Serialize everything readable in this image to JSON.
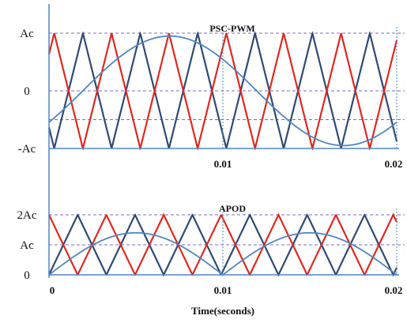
{
  "colors": {
    "carrier_a": "#2e4a73",
    "carrier_b": "#e0281f",
    "reference": "#4f86bf",
    "axis": "#4f86bf",
    "guide": "#7b68c8",
    "background": "#ffffff"
  },
  "chart_data": [
    {
      "type": "line",
      "title": "PSC-PWM",
      "x_range": [
        0,
        0.02
      ],
      "y_range": [
        -1,
        1
      ],
      "y_ticks": [
        {
          "value": 1,
          "label": "Ac"
        },
        {
          "value": 0,
          "label": "0"
        },
        {
          "value": -1,
          "label": "-Ac"
        }
      ],
      "x_ticks": [
        {
          "value": 0.01,
          "label": "0.01"
        },
        {
          "value": 0.02,
          "label": "0.02"
        }
      ],
      "guide_lines_y": [
        1,
        0,
        -0.5
      ],
      "carrier_period": 0.0033,
      "series": [
        {
          "role": "carrier",
          "color_key": "carrier_a",
          "phase_offset": 0.0003,
          "y_min": -1,
          "y_max": 1
        },
        {
          "role": "carrier",
          "color_key": "carrier_b",
          "phase_offset": 0.00195,
          "y_min": -1,
          "y_max": 1
        },
        {
          "role": "reference",
          "color_key": "reference",
          "amplitude": 0.95,
          "frequency_hz": 50,
          "phase_deg": -35
        }
      ]
    },
    {
      "type": "line",
      "title": "APOD",
      "x_range": [
        0,
        0.02
      ],
      "y_range": [
        0,
        2
      ],
      "y_ticks": [
        {
          "value": 2,
          "label": "2Ac"
        },
        {
          "value": 1,
          "label": "Ac"
        },
        {
          "value": 0,
          "label": "0"
        }
      ],
      "x_ticks": [
        {
          "value": 0,
          "label": "0"
        },
        {
          "value": 0.01,
          "label": "0.01"
        },
        {
          "value": 0.02,
          "label": "0.02"
        }
      ],
      "xlabel": "Time(seconds)",
      "guide_lines_y": [
        2,
        1
      ],
      "carrier_period": 0.0033,
      "series": [
        {
          "role": "carrier",
          "color_key": "carrier_a",
          "phase_offset": 0,
          "y_min": 0,
          "y_max": 2
        },
        {
          "role": "carrier",
          "color_key": "carrier_b",
          "phase_offset": 0.00165,
          "y_min": 0,
          "y_max": 2
        },
        {
          "role": "reference",
          "color_key": "reference",
          "type": "rectified_sine",
          "amplitude": 1.4,
          "frequency_hz": 50
        }
      ]
    }
  ]
}
